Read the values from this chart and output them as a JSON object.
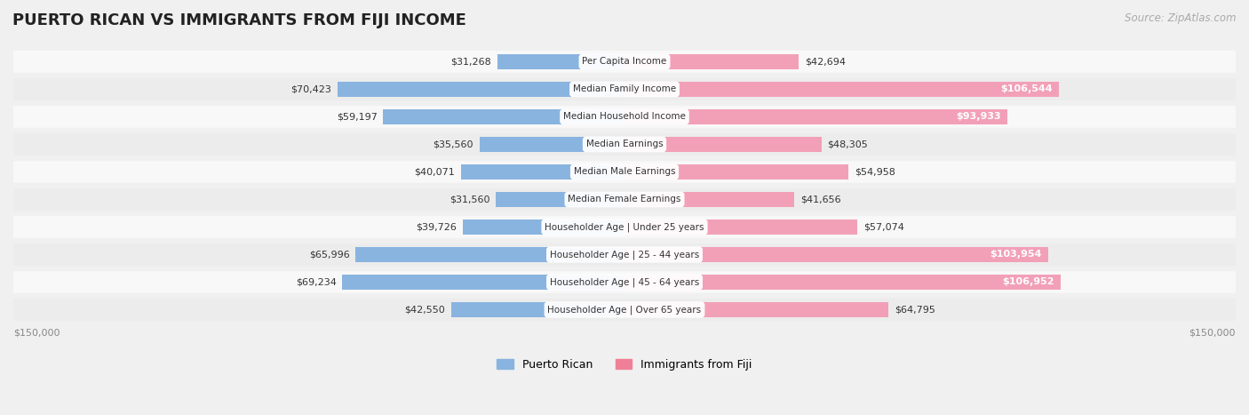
{
  "title": "PUERTO RICAN VS IMMIGRANTS FROM FIJI INCOME",
  "source": "Source: ZipAtlas.com",
  "categories": [
    "Per Capita Income",
    "Median Family Income",
    "Median Household Income",
    "Median Earnings",
    "Median Male Earnings",
    "Median Female Earnings",
    "Householder Age | Under 25 years",
    "Householder Age | 25 - 44 years",
    "Householder Age | 45 - 64 years",
    "Householder Age | Over 65 years"
  ],
  "puerto_rican": [
    31268,
    70423,
    59197,
    35560,
    40071,
    31560,
    39726,
    65996,
    69234,
    42550
  ],
  "fiji": [
    42694,
    106544,
    93933,
    48305,
    54958,
    41656,
    57074,
    103954,
    106952,
    64795
  ],
  "puerto_rican_labels": [
    "$31,268",
    "$70,423",
    "$59,197",
    "$35,560",
    "$40,071",
    "$31,560",
    "$39,726",
    "$65,996",
    "$69,234",
    "$42,550"
  ],
  "fiji_labels": [
    "$42,694",
    "$106,544",
    "$93,933",
    "$48,305",
    "$54,958",
    "$41,656",
    "$57,074",
    "$103,954",
    "$106,952",
    "$64,795"
  ],
  "max_val": 150000,
  "bar_color_pr": "#89b4e0",
  "bar_color_fiji": "#f2a0b8",
  "bg_color": "#f0f0f0",
  "row_bg_light": "#f8f8f8",
  "row_bg_dark": "#ececec",
  "label_color_pr": "#333333",
  "label_color_fiji_small": "#333333",
  "label_color_fiji_large": "#ffffff",
  "center_label_bg": "#ffffff",
  "title_color": "#222222",
  "axis_label_color": "#888888",
  "legend_pr_color": "#89b4e0",
  "legend_fiji_color": "#f08098"
}
